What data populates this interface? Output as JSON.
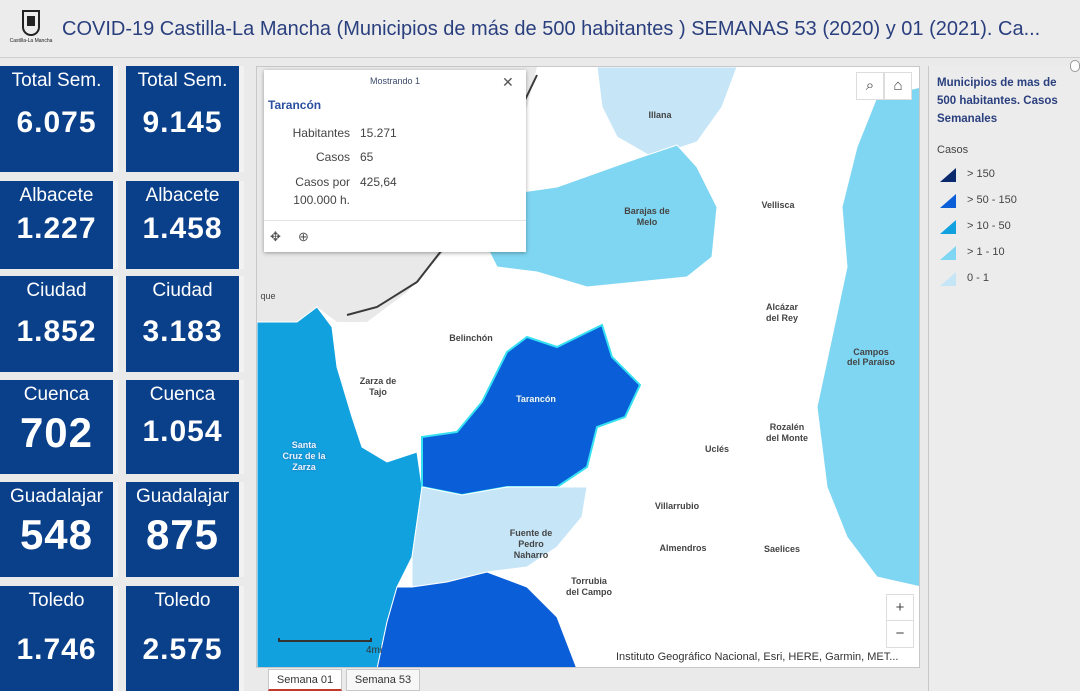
{
  "header": {
    "logo_text": "Castilla-La Mancha",
    "title": "COVID-19 Castilla-La Mancha (Municipios de más de 500 habitantes ) SEMANAS 53 (2020) y 01 (2021). Ca..."
  },
  "tiles": {
    "total_53": {
      "label": "Total Sem.",
      "value": "6.075"
    },
    "total_01": {
      "label": "Total Sem.",
      "value": "9.145"
    },
    "albacete_53": {
      "label": "Albacete",
      "value": "1.227"
    },
    "albacete_01": {
      "label": "Albacete",
      "value": "1.458"
    },
    "ciudad_53": {
      "label": "Ciudad",
      "value": "1.852"
    },
    "ciudad_01": {
      "label": "Ciudad",
      "value": "3.183"
    },
    "cuenca_53": {
      "label": "Cuenca",
      "value": "702"
    },
    "cuenca_01": {
      "label": "Cuenca",
      "value": "1.054"
    },
    "guadalajara_53": {
      "label": "Guadalajar",
      "value": "548"
    },
    "guadalajara_01": {
      "label": "Guadalajar",
      "value": "875"
    },
    "toledo_53": {
      "label": "Toledo",
      "value": "1.746"
    },
    "toledo_01": {
      "label": "Toledo",
      "value": "2.575"
    }
  },
  "popup": {
    "header": "Mostrando 1",
    "name": "Tarancón",
    "habitantes_label": "Habitantes",
    "habitantes_value": "15.271",
    "casos_label": "Casos",
    "casos_value": "65",
    "casos_por_label_1": "Casos por",
    "casos_por_label_2": "100.000 h.",
    "casos_por_value": "425,64"
  },
  "map": {
    "places": {
      "illana": "Illana",
      "barajas_1": "Barajas de",
      "barajas_2": "Melo",
      "vellisca": "Vellisca",
      "alcazar_1": "Alcázar",
      "alcazar_2": "del Rey",
      "belinchon": "Belinchón",
      "zarza_1": "Zarza de",
      "zarza_2": "Tajo",
      "campos_1": "Campos",
      "campos_2": "del Paraíso",
      "tarancon": "Tarancón",
      "rozalen_1": "Rozalén",
      "rozalen_2": "del Monte",
      "santa_1": "Santa",
      "santa_2": "Cruz de la",
      "santa_3": "Zarza",
      "ucles": "Uclés",
      "villarrubio": "Villarrubio",
      "fuente_1": "Fuente de",
      "fuente_2": "Pedro",
      "fuente_3": "Naharro",
      "almendros": "Almendros",
      "saelices": "Saelices",
      "torrubia_1": "Torrubia",
      "torrubia_2": "del Campo",
      "que": "que"
    },
    "attribution": "Instituto Geográfico Nacional, Esri, HERE, Garmin, MET...",
    "scale_label": "4mi",
    "zoom_in": "+",
    "zoom_out": "−"
  },
  "tabs": {
    "semana01": "Semana 01",
    "semana53": "Semana 53"
  },
  "legend": {
    "title": "Municipios de mas de 500 habitantes. Casos Semanales",
    "field": "Casos",
    "items": [
      {
        "label": "> 150",
        "color": "#0b2a6e"
      },
      {
        "label": "> 50 - 150",
        "color": "#0a5ed8"
      },
      {
        "label": "> 10 - 50",
        "color": "#11a1de"
      },
      {
        "label": "> 1 - 10",
        "color": "#7fd6f2"
      },
      {
        "label": "0 - 1",
        "color": "#c6e6f8"
      }
    ]
  }
}
